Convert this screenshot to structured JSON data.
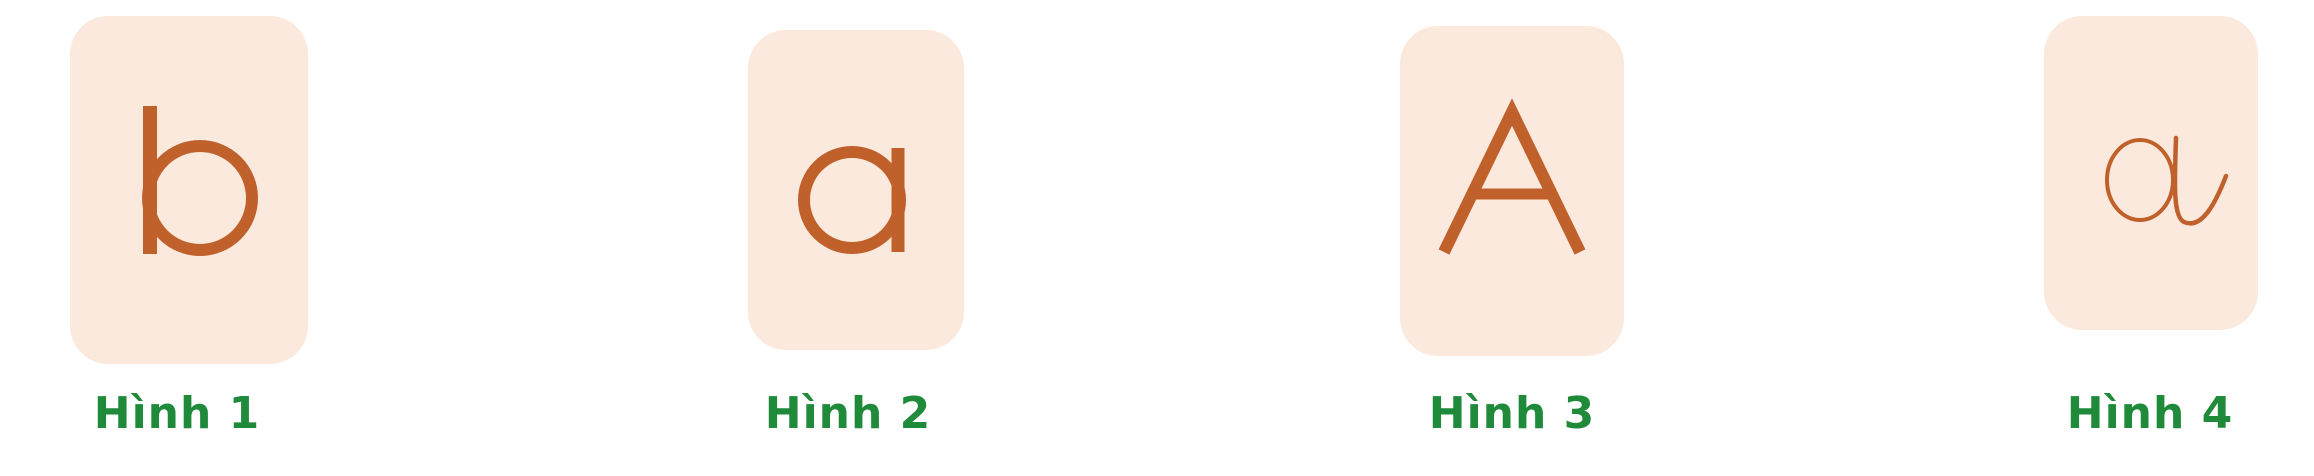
{
  "cards": [
    {
      "letter": "b",
      "caption": "Hình 1"
    },
    {
      "letter": "a",
      "caption": "Hình 2"
    },
    {
      "letter": "A",
      "caption": "Hình 3"
    },
    {
      "letter": "ɑ",
      "caption": "Hình 4"
    }
  ],
  "colors": {
    "card_background": "#fbe9dd",
    "letter": "#c0602a",
    "caption": "#1e8a3a"
  }
}
